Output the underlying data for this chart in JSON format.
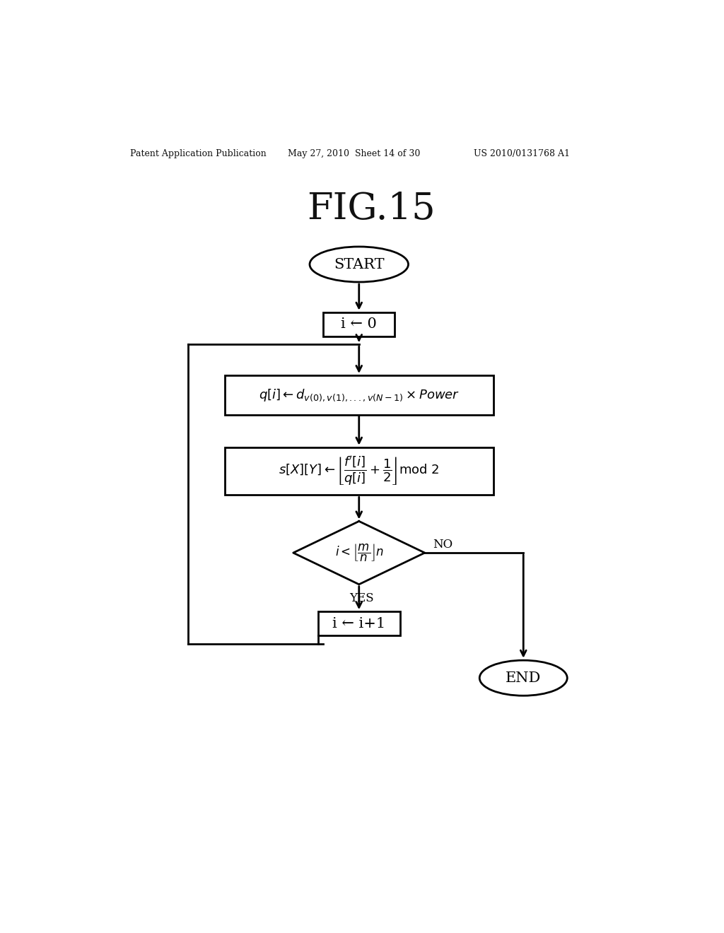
{
  "bg_color": "#ffffff",
  "title": "FIG.15",
  "header_left": "Patent Application Publication",
  "header_mid": "May 27, 2010  Sheet 14 of 30",
  "header_right": "US 2010/0131768 A1",
  "start_label": "START",
  "end_label": "END",
  "box1_label": "i ← 0",
  "box2_math": "$q[i] \\leftarrow d_{v(0),v(1),...,v(N-1)} \\times Power$",
  "box3_math": "$s[X][Y] \\leftarrow \\left\\lfloor \\dfrac{f'[i]}{q[i]} + \\dfrac{1}{2} \\right\\rfloor \\mathrm{mod}\\ 2$",
  "diamond_math": "$i < \\left\\lfloor \\dfrac{m}{n} \\right\\rfloor n$",
  "yes_label": "YES",
  "no_label": "NO",
  "box4_label": "i ← i+1"
}
